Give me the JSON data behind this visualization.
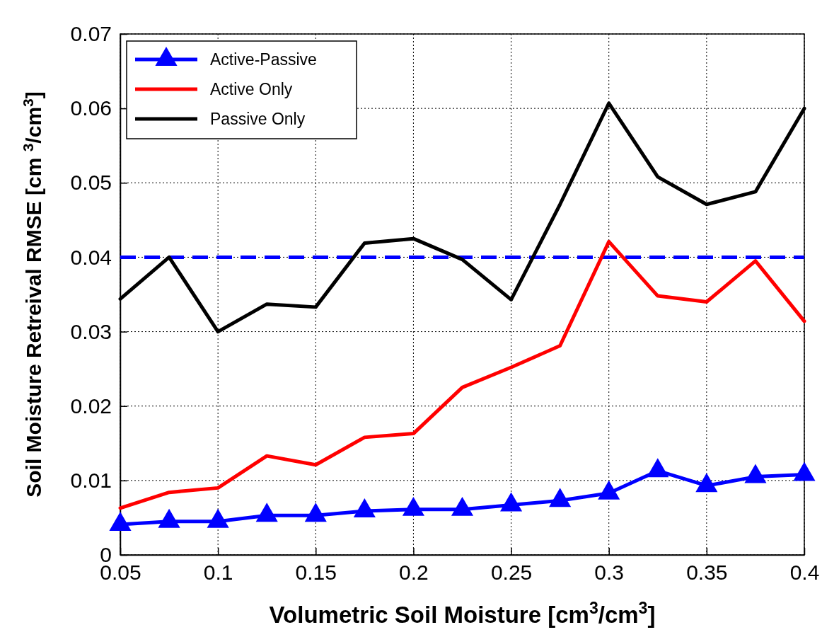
{
  "chart_data": {
    "type": "line",
    "xlabel": "Volumetric Soil Moisture [cm$^{3}$/cm$^{3}$]",
    "ylabel": "Soil Moisture Retreival RMSE [cm $^{3}$/cm$^{3}$]",
    "x": [
      0.05,
      0.075,
      0.1,
      0.125,
      0.15,
      0.175,
      0.2,
      0.225,
      0.25,
      0.275,
      0.3,
      0.325,
      0.35,
      0.375,
      0.4
    ],
    "series": [
      {
        "name": "Active-Passive",
        "color": "#0000ff",
        "marker": "triangle",
        "values": [
          0.0041,
          0.0045,
          0.0045,
          0.0053,
          0.0053,
          0.0059,
          0.0061,
          0.0061,
          0.0067,
          0.0073,
          0.0083,
          0.0113,
          0.0093,
          0.0105,
          0.0108
        ]
      },
      {
        "name": "Active Only",
        "color": "#ff0000",
        "marker": "none",
        "values": [
          0.0063,
          0.0084,
          0.009,
          0.0133,
          0.0121,
          0.0158,
          0.0163,
          0.0225,
          0.0252,
          0.0281,
          0.0421,
          0.0348,
          0.034,
          0.0395,
          0.0314
        ]
      },
      {
        "name": "Passive Only",
        "color": "#000000",
        "marker": "none",
        "values": [
          0.0344,
          0.04,
          0.03,
          0.0337,
          0.0333,
          0.0419,
          0.0425,
          0.0397,
          0.0343,
          0.0471,
          0.0607,
          0.0508,
          0.0471,
          0.0488,
          0.06
        ]
      }
    ],
    "ref_lines": [
      {
        "axis": "y",
        "value": 0.04,
        "color": "#0000ff",
        "line_style": "dashed"
      }
    ],
    "xlim": [
      0.05,
      0.4
    ],
    "xticks": [
      0.05,
      0.1,
      0.15,
      0.2,
      0.25,
      0.3,
      0.35,
      0.4
    ],
    "ylim": [
      0,
      0.07
    ],
    "yticks": [
      0,
      0.01,
      0.02,
      0.03,
      0.04,
      0.05,
      0.06,
      0.07
    ],
    "grid": true,
    "legend": "top left",
    "line_style": "solid"
  }
}
